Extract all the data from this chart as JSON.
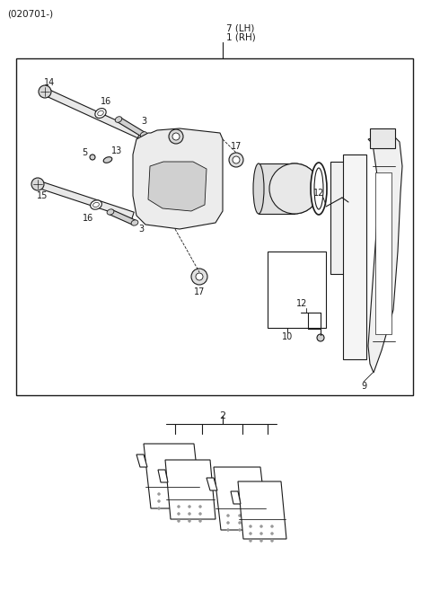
{
  "title": "(020701-)",
  "bg_color": "#ffffff",
  "line_color": "#1a1a1a",
  "figsize": [
    4.8,
    6.78
  ],
  "dpi": 100,
  "label_7": "7 (LH)",
  "label_1": "1 (RH)",
  "label_2": "2",
  "label_9": "9",
  "label_10": "10",
  "label_12a": "12",
  "label_12b": "12",
  "label_14": "14",
  "label_15": "15",
  "label_16a": "16",
  "label_16b": "16",
  "label_3a": "3",
  "label_3b": "3",
  "label_5": "5",
  "label_13": "13",
  "label_17a": "17",
  "label_17b": "17"
}
